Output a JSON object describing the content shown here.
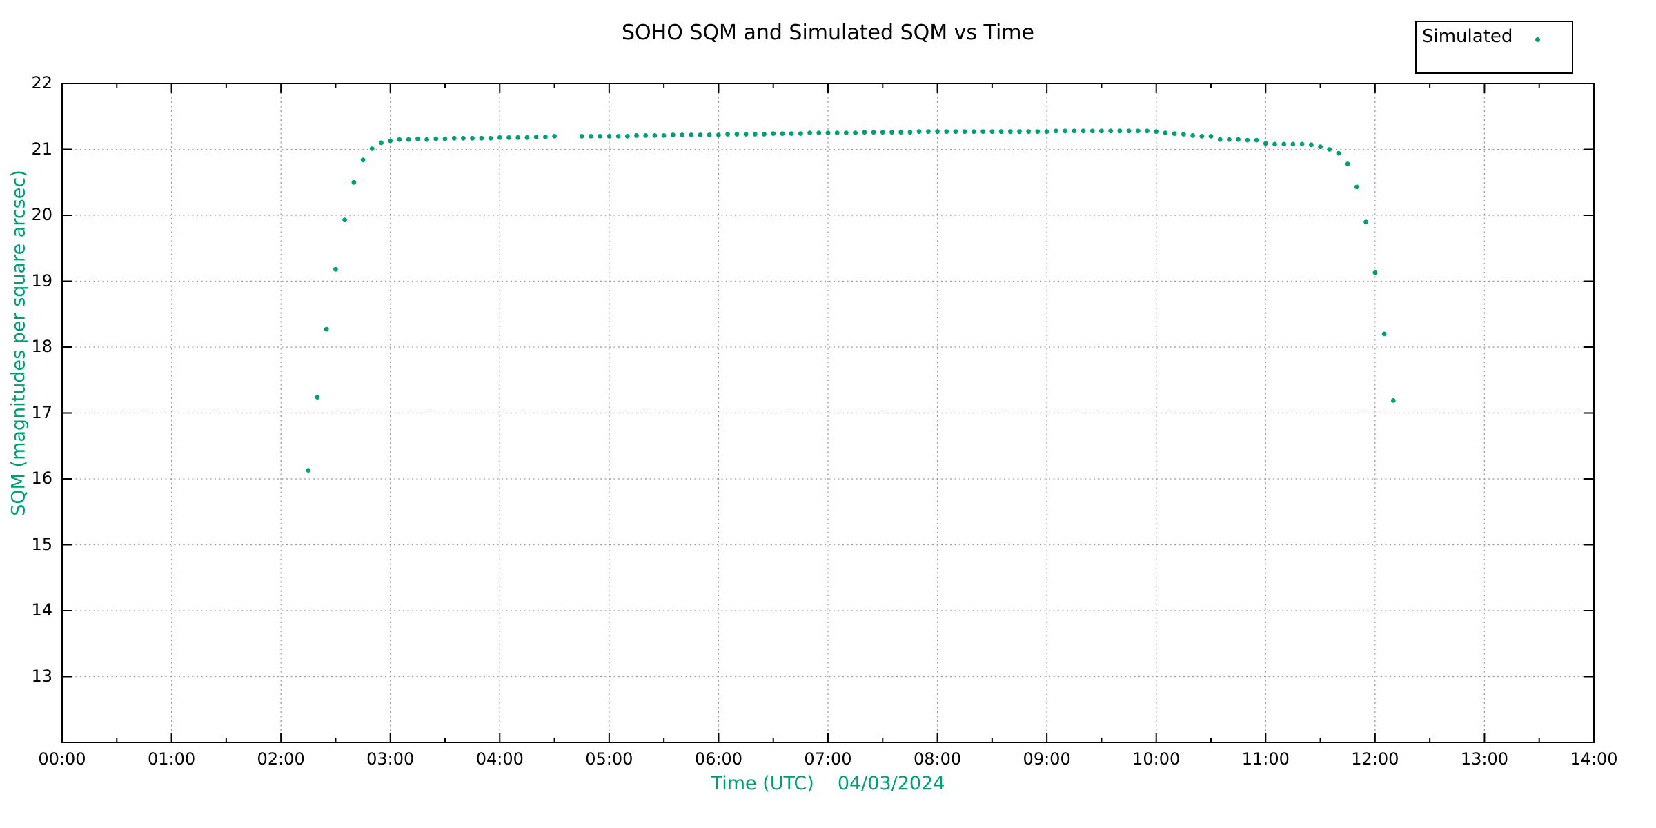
{
  "title": "SOHO SQM and Simulated SQM vs Time",
  "legend": {
    "label": "Simulated",
    "marker": "filled-green-dot"
  },
  "axes": {
    "x": {
      "label_time": "Time (UTC)",
      "date_label": "04/03/2024"
    },
    "y": {
      "label": "SQM (magnitudes per square arcsec)"
    }
  },
  "colors": {
    "accent_green": "#009e73",
    "grid_gray": "#999999",
    "axis_black": "#000000",
    "background": "#ffffff"
  },
  "chart_data": {
    "type": "scatter",
    "title": "SOHO SQM and Simulated SQM vs Time",
    "xlabel": "Time (UTC)   04/03/2024",
    "ylabel": "SQM (magnitudes per square arcsec)",
    "xlim_hours": [
      0,
      14
    ],
    "ylim": [
      12,
      22
    ],
    "x_tick_labels": [
      "00:00",
      "01:00",
      "02:00",
      "03:00",
      "04:00",
      "05:00",
      "06:00",
      "07:00",
      "08:00",
      "09:00",
      "10:00",
      "11:00",
      "12:00",
      "13:00",
      "14:00"
    ],
    "x_minor_tick_minutes": 30,
    "y_tick_labels": [
      "13",
      "14",
      "15",
      "16",
      "17",
      "18",
      "19",
      "20",
      "21",
      "22"
    ],
    "grid": "dotted lines at every hour and every integer SQM value",
    "legend_position": "top-right",
    "cadence_minutes": 5,
    "missing_times": [
      "04:35",
      "04:40"
    ],
    "series": [
      {
        "name": "Simulated",
        "marker": "dot",
        "color": "#009e73",
        "points": [
          [
            "02:15",
            16.13
          ],
          [
            "02:20",
            17.24
          ],
          [
            "02:25",
            18.27
          ],
          [
            "02:30",
            19.18
          ],
          [
            "02:35",
            19.93
          ],
          [
            "02:40",
            20.5
          ],
          [
            "02:45",
            20.84
          ],
          [
            "02:50",
            21.01
          ],
          [
            "02:55",
            21.1
          ],
          [
            "03:00",
            21.13
          ],
          [
            "03:05",
            21.15
          ],
          [
            "03:10",
            21.15
          ],
          [
            "03:15",
            21.16
          ],
          [
            "03:20",
            21.15
          ],
          [
            "03:25",
            21.16
          ],
          [
            "03:30",
            21.16
          ],
          [
            "03:35",
            21.17
          ],
          [
            "03:40",
            21.17
          ],
          [
            "03:45",
            21.17
          ],
          [
            "03:50",
            21.17
          ],
          [
            "03:55",
            21.17
          ],
          [
            "04:00",
            21.18
          ],
          [
            "04:05",
            21.18
          ],
          [
            "04:10",
            21.18
          ],
          [
            "04:15",
            21.18
          ],
          [
            "04:20",
            21.19
          ],
          [
            "04:25",
            21.19
          ],
          [
            "04:30",
            21.2
          ],
          [
            "04:45",
            21.2
          ],
          [
            "04:50",
            21.2
          ],
          [
            "04:55",
            21.2
          ],
          [
            "05:00",
            21.2
          ],
          [
            "05:05",
            21.2
          ],
          [
            "05:10",
            21.2
          ],
          [
            "05:15",
            21.21
          ],
          [
            "05:20",
            21.21
          ],
          [
            "05:25",
            21.21
          ],
          [
            "05:30",
            21.21
          ],
          [
            "05:35",
            21.22
          ],
          [
            "05:40",
            21.22
          ],
          [
            "05:45",
            21.22
          ],
          [
            "05:50",
            21.22
          ],
          [
            "05:55",
            21.22
          ],
          [
            "06:00",
            21.22
          ],
          [
            "06:05",
            21.23
          ],
          [
            "06:10",
            21.23
          ],
          [
            "06:15",
            21.23
          ],
          [
            "06:20",
            21.23
          ],
          [
            "06:25",
            21.23
          ],
          [
            "06:30",
            21.24
          ],
          [
            "06:35",
            21.24
          ],
          [
            "06:40",
            21.24
          ],
          [
            "06:45",
            21.24
          ],
          [
            "06:50",
            21.25
          ],
          [
            "06:55",
            21.25
          ],
          [
            "07:00",
            21.25
          ],
          [
            "07:05",
            21.25
          ],
          [
            "07:10",
            21.25
          ],
          [
            "07:15",
            21.25
          ],
          [
            "07:20",
            21.26
          ],
          [
            "07:25",
            21.26
          ],
          [
            "07:30",
            21.26
          ],
          [
            "07:35",
            21.26
          ],
          [
            "07:40",
            21.26
          ],
          [
            "07:45",
            21.26
          ],
          [
            "07:50",
            21.27
          ],
          [
            "07:55",
            21.27
          ],
          [
            "08:00",
            21.27
          ],
          [
            "08:05",
            21.27
          ],
          [
            "08:10",
            21.27
          ],
          [
            "08:15",
            21.27
          ],
          [
            "08:20",
            21.27
          ],
          [
            "08:25",
            21.27
          ],
          [
            "08:30",
            21.27
          ],
          [
            "08:35",
            21.27
          ],
          [
            "08:40",
            21.27
          ],
          [
            "08:45",
            21.27
          ],
          [
            "08:50",
            21.27
          ],
          [
            "08:55",
            21.27
          ],
          [
            "09:00",
            21.27
          ],
          [
            "09:05",
            21.28
          ],
          [
            "09:10",
            21.28
          ],
          [
            "09:15",
            21.28
          ],
          [
            "09:20",
            21.28
          ],
          [
            "09:25",
            21.28
          ],
          [
            "09:30",
            21.28
          ],
          [
            "09:35",
            21.28
          ],
          [
            "09:40",
            21.28
          ],
          [
            "09:45",
            21.28
          ],
          [
            "09:50",
            21.28
          ],
          [
            "09:55",
            21.28
          ],
          [
            "10:00",
            21.27
          ],
          [
            "10:05",
            21.25
          ],
          [
            "10:10",
            21.24
          ],
          [
            "10:15",
            21.23
          ],
          [
            "10:20",
            21.21
          ],
          [
            "10:25",
            21.2
          ],
          [
            "10:30",
            21.2
          ],
          [
            "10:35",
            21.15
          ],
          [
            "10:40",
            21.15
          ],
          [
            "10:45",
            21.15
          ],
          [
            "10:50",
            21.14
          ],
          [
            "10:55",
            21.14
          ],
          [
            "11:00",
            21.09
          ],
          [
            "11:05",
            21.08
          ],
          [
            "11:10",
            21.08
          ],
          [
            "11:15",
            21.08
          ],
          [
            "11:20",
            21.08
          ],
          [
            "11:25",
            21.07
          ],
          [
            "11:30",
            21.04
          ],
          [
            "11:35",
            21.0
          ],
          [
            "11:40",
            20.94
          ],
          [
            "11:45",
            20.78
          ],
          [
            "11:50",
            20.43
          ],
          [
            "11:55",
            19.9
          ],
          [
            "12:00",
            19.13
          ],
          [
            "12:05",
            18.2
          ],
          [
            "12:10",
            17.19
          ]
        ]
      }
    ]
  }
}
